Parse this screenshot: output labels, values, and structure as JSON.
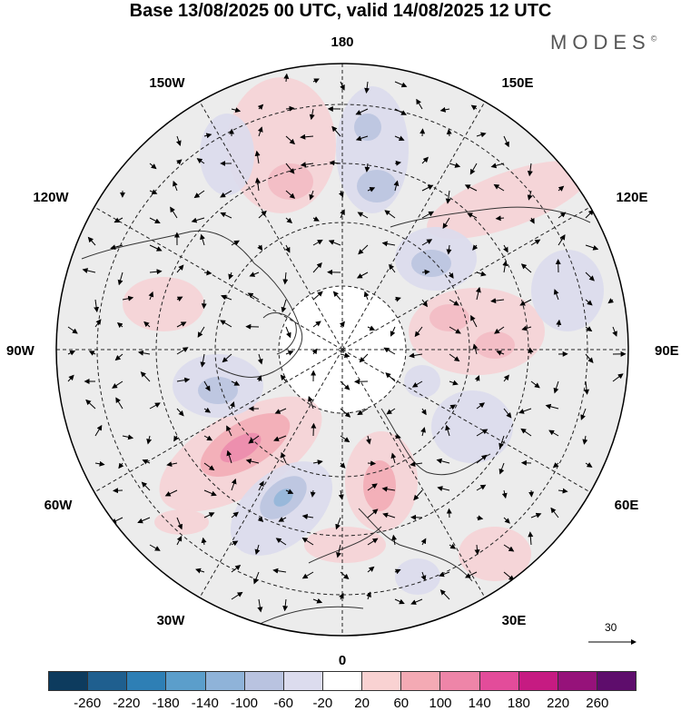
{
  "title": "Base 13/08/2025 00 UTC, valid 14/08/2025 12 UTC",
  "brand": "MODES",
  "brand_mark": "©",
  "longitude_labels": {
    "top": "180",
    "bottom": "0",
    "left": "90W",
    "right": "90E",
    "upper_left_1": "150W",
    "upper_left_2": "120W",
    "lower_left_1": "60W",
    "lower_left_2": "30W",
    "upper_right_1": "150E",
    "upper_right_2": "120E",
    "lower_right_1": "60E",
    "lower_right_2": "30E"
  },
  "vector_scale": {
    "label": "30",
    "icon": "arrow-right-icon"
  },
  "colorbar": {
    "colors": [
      "#0d3b5e",
      "#1f5f8f",
      "#2e7fb5",
      "#5b9ecb",
      "#8fb3d9",
      "#b9c3e0",
      "#dcdcee",
      "#ffffff",
      "#f9d2d2",
      "#f4aab4",
      "#ee85a8",
      "#e34c9a",
      "#c61b82",
      "#96127a",
      "#5e0d6c"
    ],
    "tick_labels": [
      "-260",
      "-220",
      "-180",
      "-140",
      "-100",
      "-60",
      "-20",
      "20",
      "60",
      "100",
      "140",
      "180",
      "220",
      "260"
    ]
  }
}
